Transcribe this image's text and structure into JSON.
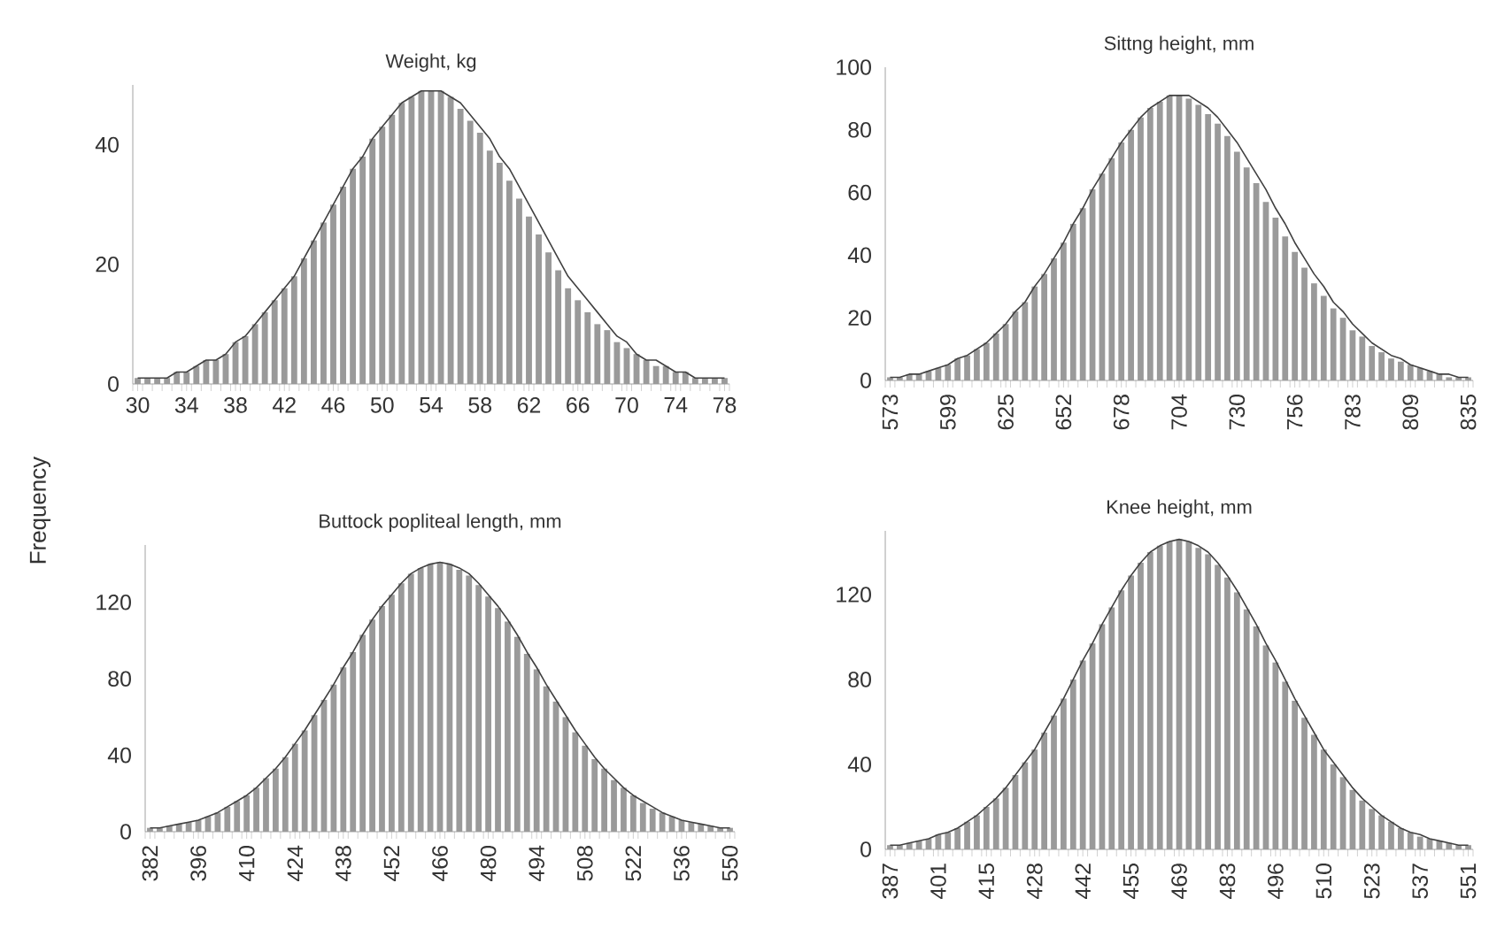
{
  "chart_data": [
    {
      "type": "bar",
      "title": "Weight, kg",
      "categories": [
        "30",
        null,
        null,
        null,
        null,
        "34",
        null,
        null,
        null,
        null,
        "38",
        null,
        null,
        null,
        null,
        "42",
        null,
        null,
        null,
        null,
        "46",
        null,
        null,
        null,
        null,
        "50",
        null,
        null,
        null,
        null,
        "54",
        null,
        null,
        null,
        null,
        "58",
        null,
        null,
        null,
        null,
        "62",
        null,
        null,
        null,
        null,
        "66",
        null,
        null,
        null,
        null,
        "70",
        null,
        null,
        null,
        null,
        "74",
        null,
        null,
        null,
        null,
        "78"
      ],
      "ylim": [
        0,
        50
      ],
      "yticks": [
        0,
        20,
        40
      ],
      "series": [
        {
          "color": "#9a9a9a",
          "values": [
            1,
            1,
            1,
            1,
            2,
            2,
            3,
            4,
            4,
            5,
            7,
            8,
            10,
            12,
            14,
            16,
            18,
            21,
            24,
            27,
            30,
            33,
            36,
            38,
            41,
            43,
            45,
            47,
            48,
            49,
            49,
            49,
            48,
            46,
            44,
            42,
            39,
            37,
            34,
            31,
            28,
            25,
            22,
            19,
            16,
            14,
            12,
            10,
            9,
            7,
            6,
            5,
            4,
            3,
            3,
            2,
            2,
            1,
            1,
            1,
            1
          ]
        },
        {
          "type": "line",
          "color": "#404040",
          "values": [
            1,
            1,
            1,
            1,
            2,
            2,
            3,
            4,
            4,
            5,
            7,
            8,
            10,
            12,
            14,
            16,
            18,
            21,
            24,
            27,
            30,
            33,
            36,
            38,
            41,
            43,
            45,
            47,
            48,
            49,
            49,
            49,
            48,
            47,
            45,
            43,
            41,
            38,
            36,
            33,
            30,
            27,
            24,
            21,
            18,
            16,
            14,
            12,
            10,
            8,
            7,
            5,
            4,
            4,
            3,
            2,
            2,
            1,
            1,
            1,
            1
          ]
        }
      ]
    },
    {
      "type": "bar",
      "title": "Sittng height, mm",
      "categories": [
        "573",
        null,
        null,
        null,
        null,
        null,
        "599",
        null,
        null,
        null,
        null,
        null,
        "625",
        null,
        null,
        null,
        null,
        null,
        "652",
        null,
        null,
        null,
        null,
        null,
        "678",
        null,
        null,
        null,
        null,
        null,
        "704",
        null,
        null,
        null,
        null,
        null,
        "730",
        null,
        null,
        null,
        null,
        null,
        "756",
        null,
        null,
        null,
        null,
        null,
        "783",
        null,
        null,
        null,
        null,
        null,
        "809",
        null,
        null,
        null,
        null,
        null,
        "835"
      ],
      "ylim": [
        0,
        100
      ],
      "yticks": [
        0,
        20,
        40,
        60,
        80,
        100
      ],
      "series": [
        {
          "color": "#9a9a9a",
          "values": [
            1,
            1,
            2,
            2,
            3,
            4,
            5,
            7,
            8,
            10,
            12,
            15,
            18,
            22,
            25,
            30,
            34,
            39,
            44,
            50,
            55,
            61,
            66,
            71,
            76,
            80,
            84,
            87,
            89,
            91,
            91,
            90,
            88,
            85,
            82,
            78,
            73,
            68,
            63,
            57,
            52,
            46,
            41,
            36,
            31,
            27,
            23,
            20,
            16,
            14,
            11,
            9,
            7,
            6,
            5,
            4,
            3,
            2,
            1,
            1,
            1
          ]
        },
        {
          "type": "line",
          "color": "#404040",
          "values": [
            1,
            1,
            2,
            2,
            3,
            4,
            5,
            7,
            8,
            10,
            12,
            15,
            18,
            22,
            25,
            30,
            34,
            39,
            44,
            50,
            55,
            61,
            66,
            71,
            76,
            80,
            84,
            87,
            89,
            91,
            91,
            91,
            89,
            87,
            84,
            80,
            76,
            71,
            66,
            61,
            55,
            50,
            44,
            39,
            34,
            30,
            25,
            22,
            18,
            15,
            12,
            10,
            8,
            7,
            5,
            4,
            3,
            2,
            2,
            1,
            1
          ]
        }
      ]
    },
    {
      "type": "bar",
      "title": "Buttock popliteal length, mm",
      "ylabel": "Frequency",
      "categories": [
        "382",
        null,
        null,
        null,
        null,
        "396",
        null,
        null,
        null,
        null,
        "410",
        null,
        null,
        null,
        null,
        "424",
        null,
        null,
        null,
        null,
        "438",
        null,
        null,
        null,
        null,
        "452",
        null,
        null,
        null,
        null,
        "466",
        null,
        null,
        null,
        null,
        "480",
        null,
        null,
        null,
        null,
        "494",
        null,
        null,
        null,
        null,
        "508",
        null,
        null,
        null,
        null,
        "522",
        null,
        null,
        null,
        null,
        "536",
        null,
        null,
        null,
        null,
        "550"
      ],
      "ylim": [
        0,
        150
      ],
      "yticks": [
        0,
        40,
        80,
        120
      ],
      "series": [
        {
          "color": "#9a9a9a",
          "values": [
            2,
            2,
            3,
            4,
            5,
            6,
            8,
            10,
            13,
            16,
            19,
            23,
            28,
            33,
            39,
            46,
            53,
            61,
            69,
            77,
            86,
            94,
            103,
            111,
            118,
            124,
            130,
            135,
            138,
            140,
            141,
            140,
            137,
            134,
            129,
            123,
            117,
            110,
            102,
            93,
            85,
            76,
            68,
            60,
            52,
            45,
            38,
            33,
            27,
            23,
            19,
            15,
            12,
            10,
            8,
            6,
            5,
            4,
            3,
            2,
            2
          ]
        },
        {
          "type": "line",
          "color": "#404040",
          "values": [
            2,
            2,
            3,
            4,
            5,
            6,
            8,
            10,
            13,
            16,
            19,
            23,
            28,
            33,
            39,
            46,
            53,
            61,
            69,
            77,
            86,
            94,
            103,
            111,
            118,
            124,
            130,
            135,
            138,
            140,
            141,
            140,
            138,
            135,
            130,
            124,
            118,
            111,
            103,
            94,
            86,
            77,
            69,
            61,
            53,
            46,
            39,
            33,
            28,
            23,
            19,
            16,
            13,
            10,
            8,
            6,
            5,
            4,
            3,
            2,
            2
          ]
        }
      ]
    },
    {
      "type": "bar",
      "title": "Knee height, mm",
      "categories": [
        "387",
        null,
        null,
        null,
        null,
        "401",
        null,
        null,
        null,
        null,
        "415",
        null,
        null,
        null,
        null,
        "428",
        null,
        null,
        null,
        null,
        "442",
        null,
        null,
        null,
        null,
        "455",
        null,
        null,
        null,
        null,
        "469",
        null,
        null,
        null,
        null,
        "483",
        null,
        null,
        null,
        null,
        "496",
        null,
        null,
        null,
        null,
        "510",
        null,
        null,
        null,
        null,
        "523",
        null,
        null,
        null,
        null,
        "537",
        null,
        null,
        null,
        null,
        "551"
      ],
      "ylim": [
        0,
        150
      ],
      "yticks": [
        0,
        40,
        80,
        120
      ],
      "series": [
        {
          "color": "#9a9a9a",
          "values": [
            2,
            2,
            3,
            4,
            5,
            7,
            8,
            10,
            13,
            16,
            20,
            24,
            29,
            35,
            41,
            47,
            55,
            63,
            71,
            80,
            89,
            97,
            106,
            114,
            122,
            129,
            135,
            140,
            143,
            145,
            146,
            145,
            142,
            139,
            134,
            128,
            121,
            113,
            105,
            96,
            88,
            79,
            70,
            62,
            54,
            47,
            40,
            34,
            28,
            23,
            19,
            16,
            13,
            10,
            8,
            6,
            5,
            4,
            3,
            2,
            2
          ]
        },
        {
          "type": "line",
          "color": "#404040",
          "values": [
            2,
            2,
            3,
            4,
            5,
            7,
            8,
            10,
            13,
            16,
            20,
            24,
            29,
            35,
            41,
            47,
            55,
            63,
            71,
            80,
            89,
            97,
            106,
            114,
            122,
            129,
            135,
            140,
            143,
            145,
            146,
            145,
            143,
            140,
            135,
            129,
            122,
            114,
            106,
            97,
            89,
            80,
            71,
            63,
            55,
            47,
            41,
            35,
            29,
            24,
            20,
            16,
            13,
            10,
            8,
            7,
            5,
            4,
            3,
            2,
            2
          ]
        }
      ]
    }
  ]
}
